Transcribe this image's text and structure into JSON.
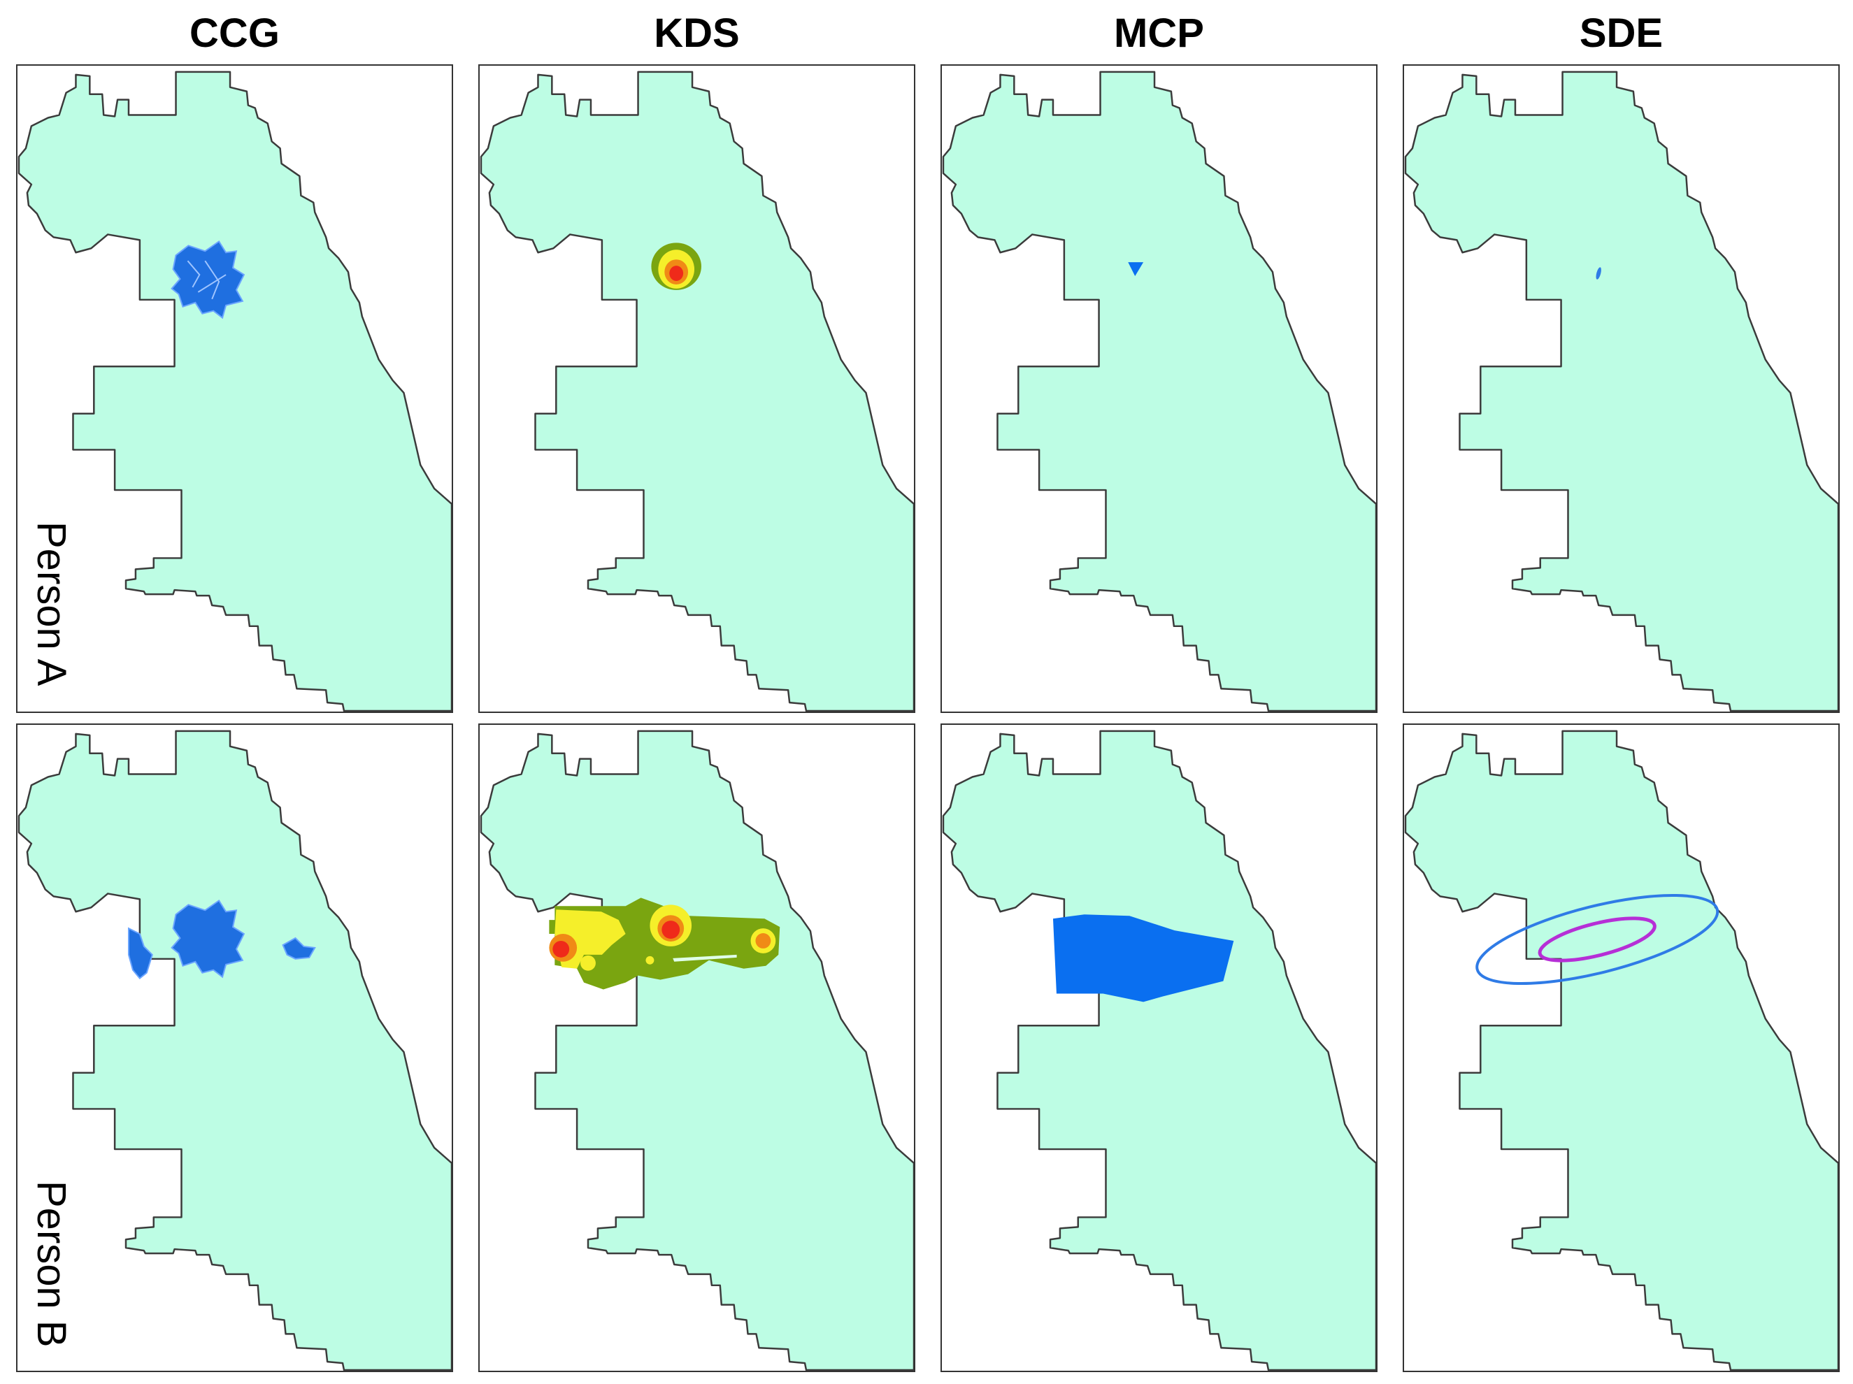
{
  "columns": [
    {
      "id": "ccg",
      "title": "CCG"
    },
    {
      "id": "kds",
      "title": "KDS"
    },
    {
      "id": "mcp",
      "title": "MCP"
    },
    {
      "id": "sde",
      "title": "SDE"
    }
  ],
  "rows": [
    {
      "id": "a",
      "label": "Person A"
    },
    {
      "id": "b",
      "label": "Person B"
    }
  ],
  "colors": {
    "city_fill": "#bdfde4",
    "city_outline": "#3b3b3b",
    "ccg_blue": "#1f6fe0",
    "kds_green": "#7aa510",
    "kds_yellow": "#f5ef2a",
    "kds_orange": "#f08a16",
    "kds_red": "#ef2a1a",
    "mcp_blue": "#0a6ff0",
    "sde_outer": "#2f7be6",
    "sde_inner": "#b62fd6"
  }
}
